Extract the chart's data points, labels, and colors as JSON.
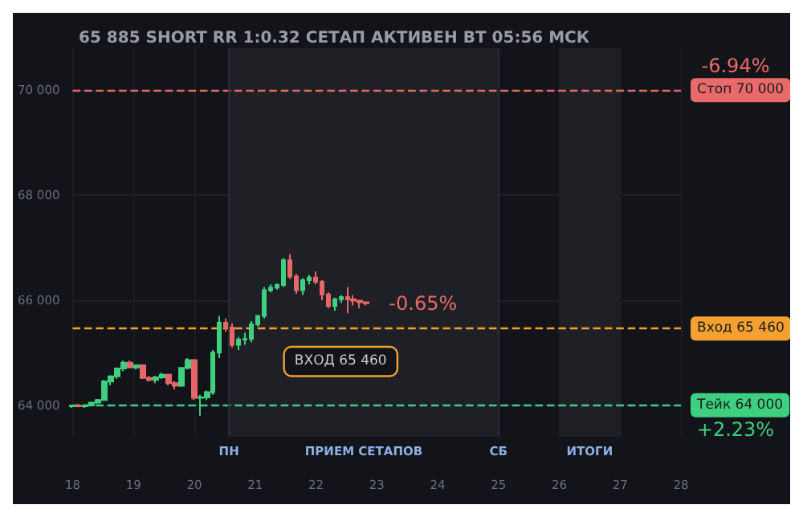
{
  "chart_data": {
    "type": "candlestick",
    "title": "65 885 SHORT RR 1:0.32 СЕТАП АКТИВЕН ВТ 05:56 МСК",
    "x": [
      18,
      18.105,
      18.21,
      18.315,
      18.42,
      18.525,
      18.63,
      18.735,
      18.84,
      18.945,
      19.05,
      19.155,
      19.26,
      19.365,
      19.47,
      19.575,
      19.68,
      19.785,
      19.89,
      19.995,
      20.1,
      20.205,
      20.31,
      20.415,
      20.52,
      20.625,
      20.73,
      20.835,
      20.94,
      21.045,
      21.15,
      21.255,
      21.36,
      21.465,
      21.57,
      21.675,
      21.78,
      21.885,
      21.99,
      22.095,
      22.2,
      22.305,
      22.41,
      22.515,
      22.62,
      22.725,
      22.83
    ],
    "ohlc": [
      [
        63980,
        64010,
        63950,
        63990
      ],
      [
        63990,
        64020,
        63960,
        63980
      ],
      [
        63980,
        64010,
        63950,
        64000
      ],
      [
        64000,
        64060,
        63980,
        64050
      ],
      [
        64050,
        64120,
        64030,
        64100
      ],
      [
        64100,
        64480,
        64080,
        64450
      ],
      [
        64450,
        64570,
        64380,
        64550
      ],
      [
        64550,
        64720,
        64500,
        64700
      ],
      [
        64700,
        64850,
        64650,
        64810
      ],
      [
        64810,
        64850,
        64700,
        64720
      ],
      [
        64720,
        64760,
        64680,
        64760
      ],
      [
        64760,
        64780,
        64500,
        64520
      ],
      [
        64520,
        64560,
        64450,
        64480
      ],
      [
        64480,
        64560,
        64420,
        64530
      ],
      [
        64530,
        64620,
        64500,
        64580
      ],
      [
        64580,
        64600,
        64380,
        64420
      ],
      [
        64420,
        64460,
        64300,
        64370
      ],
      [
        64370,
        64720,
        64350,
        64710
      ],
      [
        64710,
        64900,
        64680,
        64860
      ],
      [
        64860,
        64880,
        64100,
        64140
      ],
      [
        64140,
        64200,
        63800,
        64150
      ],
      [
        64150,
        64280,
        64100,
        64250
      ],
      [
        64250,
        65050,
        64200,
        65000
      ],
      [
        65000,
        65700,
        64900,
        65570
      ],
      [
        65570,
        65650,
        65400,
        65480
      ],
      [
        65480,
        65560,
        65100,
        65150
      ],
      [
        65150,
        65300,
        65050,
        65250
      ],
      [
        65250,
        65380,
        65150,
        65260
      ],
      [
        65260,
        65600,
        65200,
        65540
      ],
      [
        65540,
        65720,
        65500,
        65700
      ],
      [
        65700,
        66250,
        65650,
        66190
      ],
      [
        66190,
        66300,
        66150,
        66240
      ],
      [
        66240,
        66320,
        66200,
        66290
      ],
      [
        66290,
        66800,
        66250,
        66760
      ],
      [
        66760,
        66880,
        66400,
        66450
      ],
      [
        66450,
        66500,
        66120,
        66190
      ],
      [
        66190,
        66420,
        66100,
        66380
      ],
      [
        66380,
        66480,
        66300,
        66430
      ],
      [
        66430,
        66550,
        66300,
        66350
      ],
      [
        66350,
        66380,
        66000,
        66110
      ],
      [
        66110,
        66150,
        65850,
        65890
      ],
      [
        65890,
        66050,
        65800,
        66020
      ],
      [
        66020,
        66100,
        65950,
        66060
      ],
      [
        66060,
        66250,
        65750,
        66020
      ],
      [
        66020,
        66100,
        65900,
        65990
      ],
      [
        65990,
        66000,
        65850,
        65960
      ],
      [
        65960,
        65980,
        65900,
        65940
      ]
    ],
    "colors": [
      "#3ecf80",
      "#e5676a",
      "#3ecf80",
      "#3ecf80",
      "#3ecf80",
      "#3ecf80",
      "#3ecf80",
      "#3ecf80",
      "#3ecf80",
      "#e5676a",
      "#3ecf80",
      "#e5676a",
      "#e5676a",
      "#3ecf80",
      "#3ecf80",
      "#e5676a",
      "#e5676a",
      "#3ecf80",
      "#3ecf80",
      "#e5676a",
      "#3ecf80",
      "#3ecf80",
      "#3ecf80",
      "#3ecf80",
      "#e5676a",
      "#e5676a",
      "#3ecf80",
      "#3ecf80",
      "#3ecf80",
      "#3ecf80",
      "#3ecf80",
      "#3ecf80",
      "#3ecf80",
      "#3ecf80",
      "#e5676a",
      "#e5676a",
      "#3ecf80",
      "#3ecf80",
      "#e5676a",
      "#e5676a",
      "#e5676a",
      "#3ecf80",
      "#3ecf80",
      "#e5676a",
      "#e5676a",
      "#e5676a",
      "#e5676a"
    ],
    "xlim": [
      18,
      28
    ],
    "xticks": [
      18,
      19,
      20,
      21,
      22,
      23,
      24,
      25,
      26,
      27,
      28
    ],
    "ylim": [
      63400,
      70800
    ],
    "yticks": [
      {
        "value": 64000,
        "label": "64 000"
      },
      {
        "value": 66000,
        "label": "66 000"
      },
      {
        "value": 68000,
        "label": "68 000"
      },
      {
        "value": 70000,
        "label": "70 000"
      }
    ],
    "grid": true,
    "ref_lines": [
      {
        "axis": "y",
        "value": 70000,
        "label": "Стоп 70 000",
        "color": "#e86a6a",
        "line_style": "dashed"
      },
      {
        "axis": "y",
        "value": 65460,
        "label": "Вход 65 460",
        "color": "#f5a033",
        "line_style": "dashed"
      },
      {
        "axis": "y",
        "value": 64000,
        "label": "Тейк 64 000",
        "color": "#3ecf80",
        "line_style": "dashed"
      },
      {
        "axis": "x",
        "value": 20.57,
        "label": "ПН",
        "color": "#2a2c33",
        "line_style": "solid"
      },
      {
        "axis": "x",
        "value": 25,
        "label": "СБ",
        "color": "#2a2c33",
        "line_style": "solid"
      }
    ],
    "bands": [
      {
        "axis": "x",
        "from": 20.57,
        "to": 25,
        "label": "ПРИЕМ СЕТАПОВ",
        "color": "#1f2025"
      },
      {
        "axis": "x",
        "from": 26,
        "to": 27,
        "label": "ИТОГИ",
        "color": "#1f2025"
      }
    ],
    "annotations": [
      "-6.94%",
      "+2.23%",
      "-0.65%",
      {
        "text": "ВХОД 65 460",
        "x": 21.12,
        "y": 65460
      }
    ]
  }
}
